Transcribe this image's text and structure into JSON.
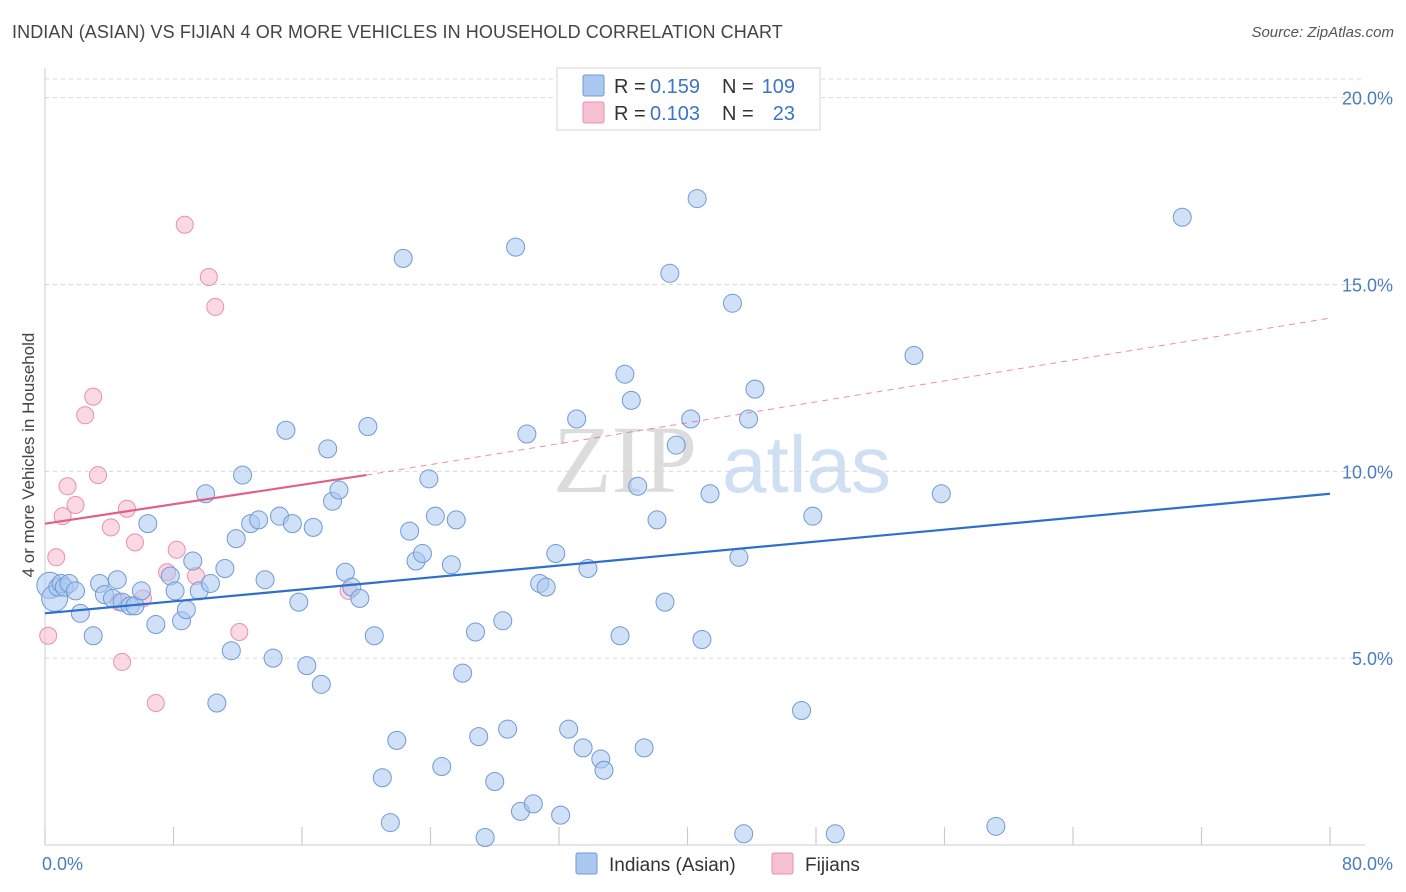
{
  "title": "INDIAN (ASIAN) VS FIJIAN 4 OR MORE VEHICLES IN HOUSEHOLD CORRELATION CHART",
  "source": "Source: ZipAtlas.com",
  "watermark": {
    "part1": "ZIP",
    "part2": "atlas"
  },
  "colors": {
    "blue_fill": "#aac8f0",
    "blue_stroke": "#6f9ad6",
    "blue_line": "#2f6fcc",
    "pink_fill": "#f7c0d2",
    "pink_stroke": "#e890ad",
    "pink_line": "#e0608c",
    "grid": "#d8d8d8",
    "tick_text": "#4a7cc4"
  },
  "legend": {
    "rows": [
      {
        "r_label": "R =",
        "r_value": "0.159",
        "n_label": "N =",
        "n_value": "109"
      },
      {
        "r_label": "R =",
        "r_value": "0.103",
        "n_label": "N =",
        "n_value": "23"
      }
    ]
  },
  "bottom_legend": [
    "Indians (Asian)",
    "Fijians"
  ],
  "chart_data": {
    "type": "scatter",
    "title": "INDIAN (ASIAN) VS FIJIAN 4 OR MORE VEHICLES IN HOUSEHOLD CORRELATION CHART",
    "xlabel": "",
    "ylabel": "4 or more Vehicles in Household",
    "xlim": [
      0,
      80
    ],
    "ylim": [
      0,
      20.5
    ],
    "x_tick_labels": [
      {
        "value": 0,
        "label": "0.0%"
      },
      {
        "value": 80,
        "label": "80.0%"
      }
    ],
    "y_tick_labels": [
      {
        "value": 5,
        "label": "5.0%"
      },
      {
        "value": 10,
        "label": "10.0%"
      },
      {
        "value": 15,
        "label": "15.0%"
      },
      {
        "value": 20,
        "label": "20.0%"
      }
    ],
    "y_gridlines": [
      5,
      10,
      15,
      20
    ],
    "legend_position": "top-center",
    "series": [
      {
        "name": "Indians (Asian)",
        "trend": {
          "x": [
            0,
            80
          ],
          "y": [
            6.2,
            9.4
          ]
        },
        "points": [
          [
            0.3,
            6.95
          ],
          [
            0.6,
            6.6
          ],
          [
            0.8,
            6.9
          ],
          [
            1.0,
            7.0
          ],
          [
            1.2,
            6.9
          ],
          [
            1.5,
            7.0
          ],
          [
            1.9,
            6.8
          ],
          [
            2.2,
            6.2
          ],
          [
            3.0,
            5.6
          ],
          [
            3.4,
            7.0
          ],
          [
            3.7,
            6.7
          ],
          [
            4.2,
            6.6
          ],
          [
            4.5,
            7.1
          ],
          [
            4.8,
            6.5
          ],
          [
            5.3,
            6.4
          ],
          [
            5.6,
            6.4
          ],
          [
            6.0,
            6.8
          ],
          [
            6.4,
            8.6
          ],
          [
            6.9,
            5.9
          ],
          [
            7.8,
            7.2
          ],
          [
            8.1,
            6.8
          ],
          [
            8.5,
            6.0
          ],
          [
            8.8,
            6.3
          ],
          [
            9.2,
            7.6
          ],
          [
            9.6,
            6.8
          ],
          [
            10.0,
            9.4
          ],
          [
            10.3,
            7.0
          ],
          [
            10.7,
            3.8
          ],
          [
            11.2,
            7.4
          ],
          [
            11.6,
            5.2
          ],
          [
            11.9,
            8.2
          ],
          [
            12.3,
            9.9
          ],
          [
            12.8,
            8.6
          ],
          [
            13.3,
            8.7
          ],
          [
            13.7,
            7.1
          ],
          [
            14.2,
            5.0
          ],
          [
            14.6,
            8.8
          ],
          [
            15.0,
            11.1
          ],
          [
            15.4,
            8.6
          ],
          [
            15.8,
            6.5
          ],
          [
            16.3,
            4.8
          ],
          [
            16.7,
            8.5
          ],
          [
            17.2,
            4.3
          ],
          [
            17.6,
            10.6
          ],
          [
            17.9,
            9.2
          ],
          [
            18.3,
            9.5
          ],
          [
            18.7,
            7.3
          ],
          [
            19.1,
            6.9
          ],
          [
            19.6,
            6.6
          ],
          [
            20.1,
            11.2
          ],
          [
            20.5,
            5.6
          ],
          [
            21.0,
            1.8
          ],
          [
            21.5,
            0.6
          ],
          [
            21.9,
            2.8
          ],
          [
            22.3,
            15.7
          ],
          [
            22.7,
            8.4
          ],
          [
            23.1,
            7.6
          ],
          [
            23.5,
            7.8
          ],
          [
            23.9,
            9.8
          ],
          [
            24.3,
            8.8
          ],
          [
            24.7,
            2.1
          ],
          [
            25.3,
            7.5
          ],
          [
            25.6,
            8.7
          ],
          [
            26.0,
            4.6
          ],
          [
            26.8,
            5.7
          ],
          [
            27.0,
            2.9
          ],
          [
            27.4,
            0.2
          ],
          [
            28.0,
            1.7
          ],
          [
            28.5,
            6.0
          ],
          [
            28.8,
            3.1
          ],
          [
            29.3,
            16.0
          ],
          [
            29.6,
            0.9
          ],
          [
            30.0,
            11.0
          ],
          [
            30.4,
            1.1
          ],
          [
            30.8,
            7.0
          ],
          [
            31.2,
            6.9
          ],
          [
            31.8,
            7.8
          ],
          [
            32.1,
            0.8
          ],
          [
            32.6,
            3.1
          ],
          [
            33.1,
            11.4
          ],
          [
            33.5,
            2.6
          ],
          [
            33.8,
            7.4
          ],
          [
            34.6,
            2.3
          ],
          [
            34.8,
            2.0
          ],
          [
            35.8,
            5.6
          ],
          [
            36.1,
            12.6
          ],
          [
            36.5,
            11.9
          ],
          [
            36.9,
            9.6
          ],
          [
            37.3,
            2.6
          ],
          [
            38.1,
            8.7
          ],
          [
            38.6,
            6.5
          ],
          [
            38.9,
            15.3
          ],
          [
            39.3,
            10.7
          ],
          [
            40.2,
            11.4
          ],
          [
            40.6,
            17.3
          ],
          [
            40.9,
            5.5
          ],
          [
            41.4,
            9.4
          ],
          [
            42.8,
            14.5
          ],
          [
            43.2,
            7.7
          ],
          [
            43.5,
            0.3
          ],
          [
            43.8,
            11.4
          ],
          [
            44.2,
            12.2
          ],
          [
            47.1,
            3.6
          ],
          [
            47.8,
            8.8
          ],
          [
            49.2,
            0.3
          ],
          [
            54.1,
            13.1
          ],
          [
            55.8,
            9.4
          ],
          [
            59.2,
            0.5
          ],
          [
            70.8,
            16.8
          ]
        ]
      },
      {
        "name": "Fijians",
        "trend": {
          "x": [
            0,
            20
          ],
          "y": [
            8.6,
            9.9
          ]
        },
        "trend_extension": {
          "x": [
            20,
            80
          ],
          "y": [
            9.9,
            14.1
          ]
        },
        "points": [
          [
            0.2,
            5.6
          ],
          [
            0.7,
            7.7
          ],
          [
            1.1,
            8.8
          ],
          [
            1.4,
            9.6
          ],
          [
            1.9,
            9.1
          ],
          [
            2.5,
            11.5
          ],
          [
            3.0,
            12.0
          ],
          [
            3.3,
            9.9
          ],
          [
            4.1,
            8.5
          ],
          [
            4.6,
            6.5
          ],
          [
            5.1,
            9.0
          ],
          [
            5.6,
            8.1
          ],
          [
            6.1,
            6.6
          ],
          [
            6.9,
            3.8
          ],
          [
            7.6,
            7.3
          ],
          [
            8.2,
            7.9
          ],
          [
            8.7,
            16.6
          ],
          [
            9.4,
            7.2
          ],
          [
            10.2,
            15.2
          ],
          [
            10.6,
            14.4
          ],
          [
            12.1,
            5.7
          ],
          [
            18.9,
            6.8
          ],
          [
            4.8,
            4.9
          ]
        ]
      }
    ]
  }
}
